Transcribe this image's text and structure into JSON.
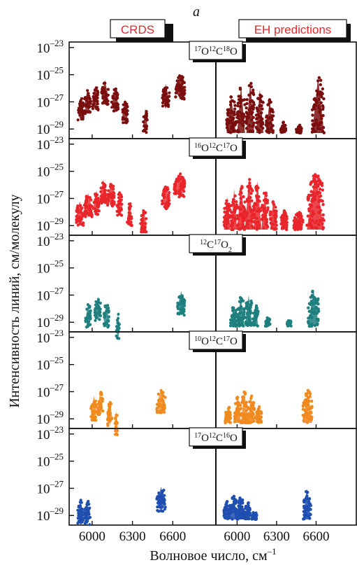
{
  "chart_data": {
    "type": "scatter",
    "panel_letter": "a",
    "method_labels": {
      "left": "CRDS",
      "right": "EH predictions"
    },
    "ylabel": "Интенсивность линий, см/молекулу",
    "xlabel": "Волновое число, см",
    "xlabel_sup": "–1",
    "x_ticks": [
      6000,
      6300,
      6600
    ],
    "y_ticks": [
      {
        "value": -23,
        "base": "10",
        "exp": "–23"
      },
      {
        "value": -25,
        "base": "10",
        "exp": "–25"
      },
      {
        "value": -27,
        "base": "10",
        "exp": "–27"
      },
      {
        "value": -29,
        "base": "10",
        "exp": "–29"
      }
    ],
    "ylim_log10": [
      -29.4,
      -22.8
    ],
    "xlim": [
      5860,
      6900
    ],
    "y_scale": "log",
    "grid": false,
    "colors": {
      "17O12C18O": "#7a0e0e",
      "16O12C17O": "#e8262b",
      "12C17O2": "#1f7f7f",
      "16O12C17O_b": "#f08a1e",
      "17O12C16O": "#1f4fb0",
      "method_label": "#e8262b"
    },
    "panels": [
      {
        "isotopologue": {
          "parts": [
            {
              "t": "17",
              "sup": true
            },
            {
              "t": "O"
            },
            {
              "t": "12",
              "sup": true
            },
            {
              "t": "C"
            },
            {
              "t": "18",
              "sup": true
            },
            {
              "t": "O"
            }
          ]
        },
        "color_key": "17O12C18O",
        "crds_bands": [
          {
            "x": [
              5895,
              5935
            ],
            "peak": -26.6
          },
          {
            "x": [
              5940,
              5990
            ],
            "peak": -26.1
          },
          {
            "x": [
              6000,
              6045
            ],
            "peak": -25.8
          },
          {
            "x": [
              6070,
              6120
            ],
            "peak": -25.4
          },
          {
            "x": [
              6145,
              6195
            ],
            "peak": -26.0
          },
          {
            "x": [
              6225,
              6265
            ],
            "peak": -26.8
          },
          {
            "x": [
              6380,
              6410
            ],
            "peak": -27.5
          },
          {
            "x": [
              6520,
              6575
            ],
            "peak": -25.7
          },
          {
            "x": [
              6620,
              6690
            ],
            "peak": -25.0
          }
        ],
        "eh_bands": [
          {
            "x": [
              5920,
              5990
            ],
            "peak": -26.6
          },
          {
            "x": [
              6000,
              6060
            ],
            "peak": -25.8
          },
          {
            "x": [
              6070,
              6130
            ],
            "peak": -25.5
          },
          {
            "x": [
              6145,
              6200
            ],
            "peak": -26.1
          },
          {
            "x": [
              6220,
              6275
            ],
            "peak": -26.8
          },
          {
            "x": [
              6330,
              6370
            ],
            "peak": -28.5
          },
          {
            "x": [
              6450,
              6490
            ],
            "peak": -28.7
          },
          {
            "x": [
              6570,
              6660
            ],
            "peak": -25.2
          }
        ]
      },
      {
        "isotopologue": {
          "parts": [
            {
              "t": "16",
              "sup": true
            },
            {
              "t": "O"
            },
            {
              "t": "12",
              "sup": true
            },
            {
              "t": "C"
            },
            {
              "t": "17",
              "sup": true
            },
            {
              "t": "O"
            }
          ]
        },
        "color_key": "16O12C17O",
        "crds_bands": [
          {
            "x": [
              5880,
              5935
            ],
            "peak": -27.2
          },
          {
            "x": [
              5940,
              6000
            ],
            "peak": -26.6
          },
          {
            "x": [
              6010,
              6055
            ],
            "peak": -26.4
          },
          {
            "x": [
              6060,
              6105
            ],
            "peak": -25.6
          },
          {
            "x": [
              6115,
              6165
            ],
            "peak": -25.8
          },
          {
            "x": [
              6185,
              6225
            ],
            "peak": -26.5
          },
          {
            "x": [
              6260,
              6295
            ],
            "peak": -27.3
          },
          {
            "x": [
              6360,
              6405
            ],
            "peak": -27.8
          },
          {
            "x": [
              6520,
              6575
            ],
            "peak": -26.0
          },
          {
            "x": [
              6610,
              6690
            ],
            "peak": -25.1
          }
        ],
        "eh_bands": [
          {
            "x": [
              5900,
              5950
            ],
            "peak": -26.9
          },
          {
            "x": [
              5955,
              6000
            ],
            "peak": -26.3
          },
          {
            "x": [
              6000,
              6060
            ],
            "peak": -25.9
          },
          {
            "x": [
              6060,
              6120
            ],
            "peak": -25.5
          },
          {
            "x": [
              6125,
              6185
            ],
            "peak": -25.7
          },
          {
            "x": [
              6185,
              6235
            ],
            "peak": -26.5
          },
          {
            "x": [
              6250,
              6300
            ],
            "peak": -27.2
          },
          {
            "x": [
              6330,
              6380
            ],
            "peak": -27.9
          },
          {
            "x": [
              6430,
              6500
            ],
            "peak": -28.0
          },
          {
            "x": [
              6530,
              6660
            ],
            "peak": -25.1
          }
        ]
      },
      {
        "isotopologue": {
          "parts": [
            {
              "t": "12",
              "sup": true
            },
            {
              "t": "C"
            },
            {
              "t": "17",
              "sup": true
            },
            {
              "t": "O"
            },
            {
              "t": "2",
              "sub": true
            }
          ]
        },
        "color_key": "12C17O2",
        "crds_bands": [
          {
            "x": [
              5950,
              5990
            ],
            "peak": -27.6
          },
          {
            "x": [
              6020,
              6065
            ],
            "peak": -27.1
          },
          {
            "x": [
              6085,
              6125
            ],
            "peak": -27.6
          },
          {
            "x": [
              6180,
              6205
            ],
            "peak": -28.4
          },
          {
            "x": [
              6635,
              6690
            ],
            "peak": -26.7
          }
        ],
        "eh_bands": [
          {
            "x": [
              5950,
              5995
            ],
            "peak": -27.8
          },
          {
            "x": [
              6000,
              6055
            ],
            "peak": -27.1
          },
          {
            "x": [
              6060,
              6115
            ],
            "peak": -27.0
          },
          {
            "x": [
              6120,
              6160
            ],
            "peak": -27.7
          },
          {
            "x": [
              6215,
              6250
            ],
            "peak": -28.6
          },
          {
            "x": [
              6380,
              6410
            ],
            "peak": -28.8
          },
          {
            "x": [
              6540,
              6620
            ],
            "peak": -26.6
          }
        ]
      },
      {
        "isotopologue": {
          "parts": [
            {
              "t": "10",
              "sup": true
            },
            {
              "t": "O"
            },
            {
              "t": "12",
              "sup": true
            },
            {
              "t": "C"
            },
            {
              "t": "17",
              "sup": true
            },
            {
              "t": "O"
            }
          ]
        },
        "color_key": "16O12C17O_b",
        "crds_bands": [
          {
            "x": [
              5990,
              6035
            ],
            "peak": -27.3
          },
          {
            "x": [
              6040,
              6080
            ],
            "peak": -27.0
          },
          {
            "x": [
              6115,
              6150
            ],
            "peak": -27.7
          },
          {
            "x": [
              6170,
              6190
            ],
            "peak": -28.4
          },
          {
            "x": [
              6480,
              6545
            ],
            "peak": -26.8
          }
        ],
        "eh_bands": [
          {
            "x": [
              5910,
              5950
            ],
            "peak": -28.0
          },
          {
            "x": [
              5980,
              6030
            ],
            "peak": -27.3
          },
          {
            "x": [
              6030,
              6080
            ],
            "peak": -26.9
          },
          {
            "x": [
              6080,
              6130
            ],
            "peak": -27.3
          },
          {
            "x": [
              6140,
              6185
            ],
            "peak": -28.1
          },
          {
            "x": [
              6500,
              6570
            ],
            "peak": -26.9
          }
        ]
      },
      {
        "isotopologue": {
          "parts": [
            {
              "t": "17",
              "sup": true
            },
            {
              "t": "O"
            },
            {
              "t": "12",
              "sup": true
            },
            {
              "t": "C"
            },
            {
              "t": "16",
              "sup": true
            },
            {
              "t": "O"
            }
          ]
        },
        "color_key": "17O12C16O",
        "crds_bands": [
          {
            "x": [
              5890,
              5935
            ],
            "peak": -27.8
          },
          {
            "x": [
              5940,
              5985
            ],
            "peak": -27.9
          },
          {
            "x": [
              6480,
              6545
            ],
            "peak": -26.9
          }
        ],
        "eh_bands": [
          {
            "x": [
              5900,
              5950
            ],
            "peak": -27.9
          },
          {
            "x": [
              5950,
              6000
            ],
            "peak": -27.4
          },
          {
            "x": [
              6000,
              6050
            ],
            "peak": -27.6
          },
          {
            "x": [
              6055,
              6100
            ],
            "peak": -28.0
          },
          {
            "x": [
              6110,
              6150
            ],
            "peak": -28.7
          },
          {
            "x": [
              6500,
              6560
            ],
            "peak": -27.0
          }
        ]
      }
    ]
  }
}
